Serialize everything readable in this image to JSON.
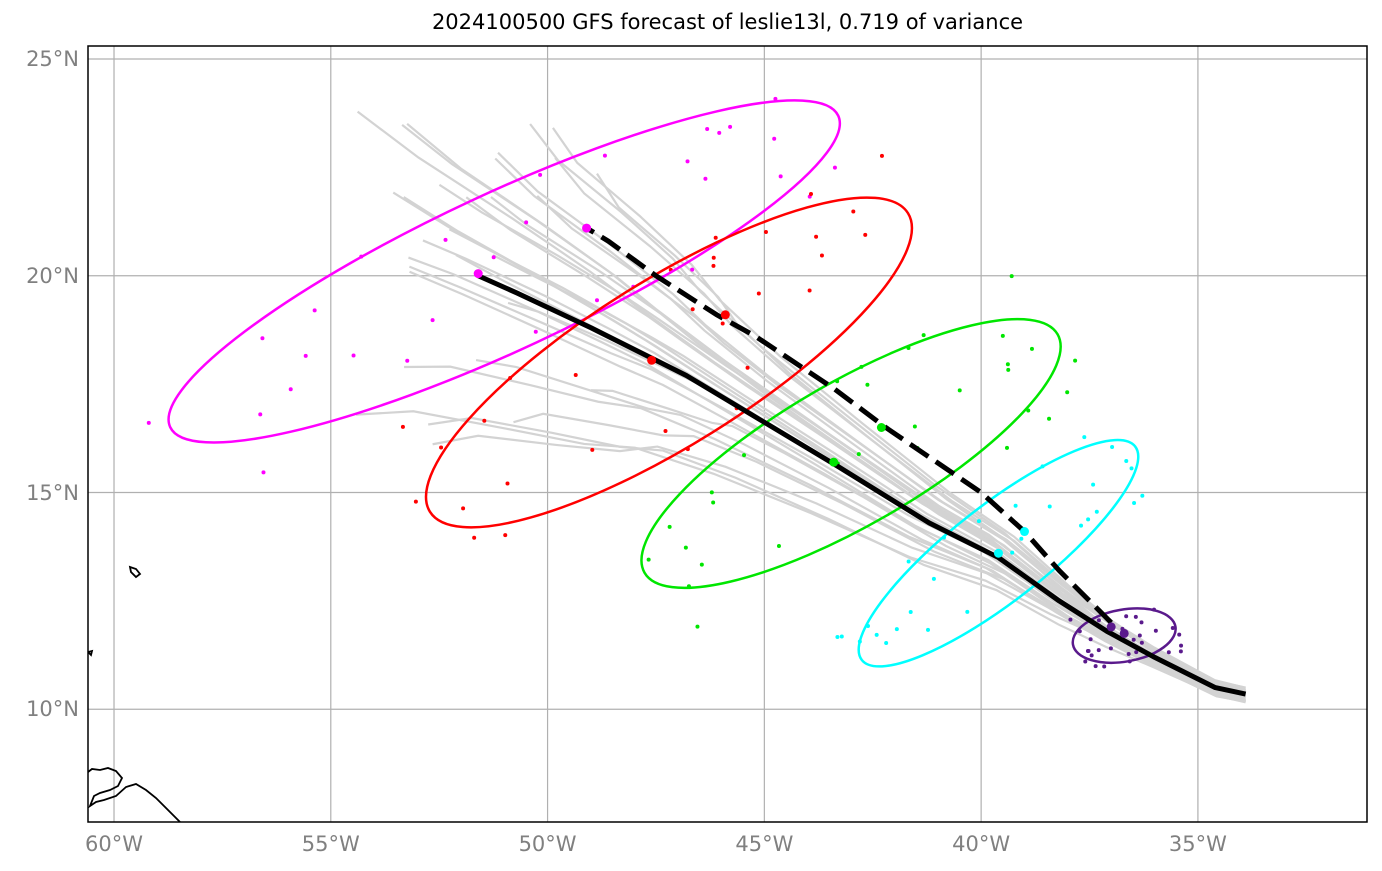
{
  "title": "2024100500 GFS forecast of leslie13l, 0.719 of variance",
  "lon_ticks": [
    {
      "value": -60,
      "label": "60°W"
    },
    {
      "value": -55,
      "label": "55°W"
    },
    {
      "value": -50,
      "label": "50°W"
    },
    {
      "value": -45,
      "label": "45°W"
    },
    {
      "value": -40,
      "label": "40°W"
    },
    {
      "value": -35,
      "label": "35°W"
    }
  ],
  "lat_ticks": [
    {
      "value": 10,
      "label": "10°N"
    },
    {
      "value": 15,
      "label": "15°N"
    },
    {
      "value": 20,
      "label": "20°N"
    },
    {
      "value": 25,
      "label": "25°N"
    }
  ],
  "colors": {
    "ensemble": "#d3d3d3",
    "mean_track": "#000000",
    "grid": "#b0b0b0",
    "coast": "#000000"
  },
  "map": {
    "lon_range": [
      -60.6,
      -31.1
    ],
    "lat_range": [
      7.4,
      25.3
    ],
    "grid": true,
    "mean_track": [
      [
        -33.9,
        10.35
      ],
      [
        -34.6,
        10.5
      ],
      [
        -36.0,
        11.2
      ],
      [
        -37.1,
        11.8
      ],
      [
        -38.2,
        12.5
      ],
      [
        -39.6,
        13.5
      ],
      [
        -41.2,
        14.3
      ],
      [
        -43.3,
        15.6
      ],
      [
        -45.3,
        16.8
      ],
      [
        -46.8,
        17.7
      ],
      [
        -47.6,
        18.1
      ],
      [
        -49.0,
        18.8
      ],
      [
        -50.7,
        19.6
      ],
      [
        -51.6,
        20.0
      ]
    ],
    "dashed_track": [
      [
        -37.0,
        12.0
      ],
      [
        -38.2,
        13.2
      ],
      [
        -39.0,
        14.1
      ],
      [
        -40.0,
        15.0
      ],
      [
        -42.2,
        16.5
      ],
      [
        -43.4,
        17.4
      ],
      [
        -45.2,
        18.6
      ],
      [
        -46.1,
        19.1
      ],
      [
        -47.5,
        20.0
      ],
      [
        -48.6,
        20.8
      ],
      [
        -49.1,
        21.1
      ]
    ],
    "ellipses": [
      {
        "color": "#ff00ff",
        "center": [
          -51.0,
          20.1
        ],
        "width_deg": 17.0,
        "height_deg": 3.6,
        "angle_deg": 25,
        "mean": [
          -51.6,
          20.05
        ],
        "alt": [
          -49.1,
          21.1
        ]
      },
      {
        "color": "#ff0000",
        "center": [
          -47.2,
          18.0
        ],
        "width_deg": 13.0,
        "height_deg": 3.8,
        "angle_deg": 32,
        "mean": [
          -47.6,
          18.05
        ],
        "alt": [
          -45.9,
          19.1
        ]
      },
      {
        "color": "#00e600",
        "center": [
          -43.0,
          15.9
        ],
        "width_deg": 11.0,
        "height_deg": 3.3,
        "angle_deg": 30,
        "mean": [
          -43.4,
          15.7
        ],
        "alt": [
          -42.3,
          16.5
        ]
      },
      {
        "color": "#00ffff",
        "center": [
          -39.6,
          13.6
        ],
        "width_deg": 8.0,
        "height_deg": 2.2,
        "angle_deg": 38,
        "mean": [
          -39.6,
          13.6
        ],
        "alt": [
          -39.0,
          14.1
        ]
      },
      {
        "color": "#5a1a8c",
        "center": [
          -36.7,
          11.7
        ],
        "width_deg": 2.4,
        "height_deg": 1.2,
        "angle_deg": 10,
        "mean": [
          -36.7,
          11.75
        ],
        "alt": [
          -37.0,
          11.9
        ]
      }
    ]
  }
}
